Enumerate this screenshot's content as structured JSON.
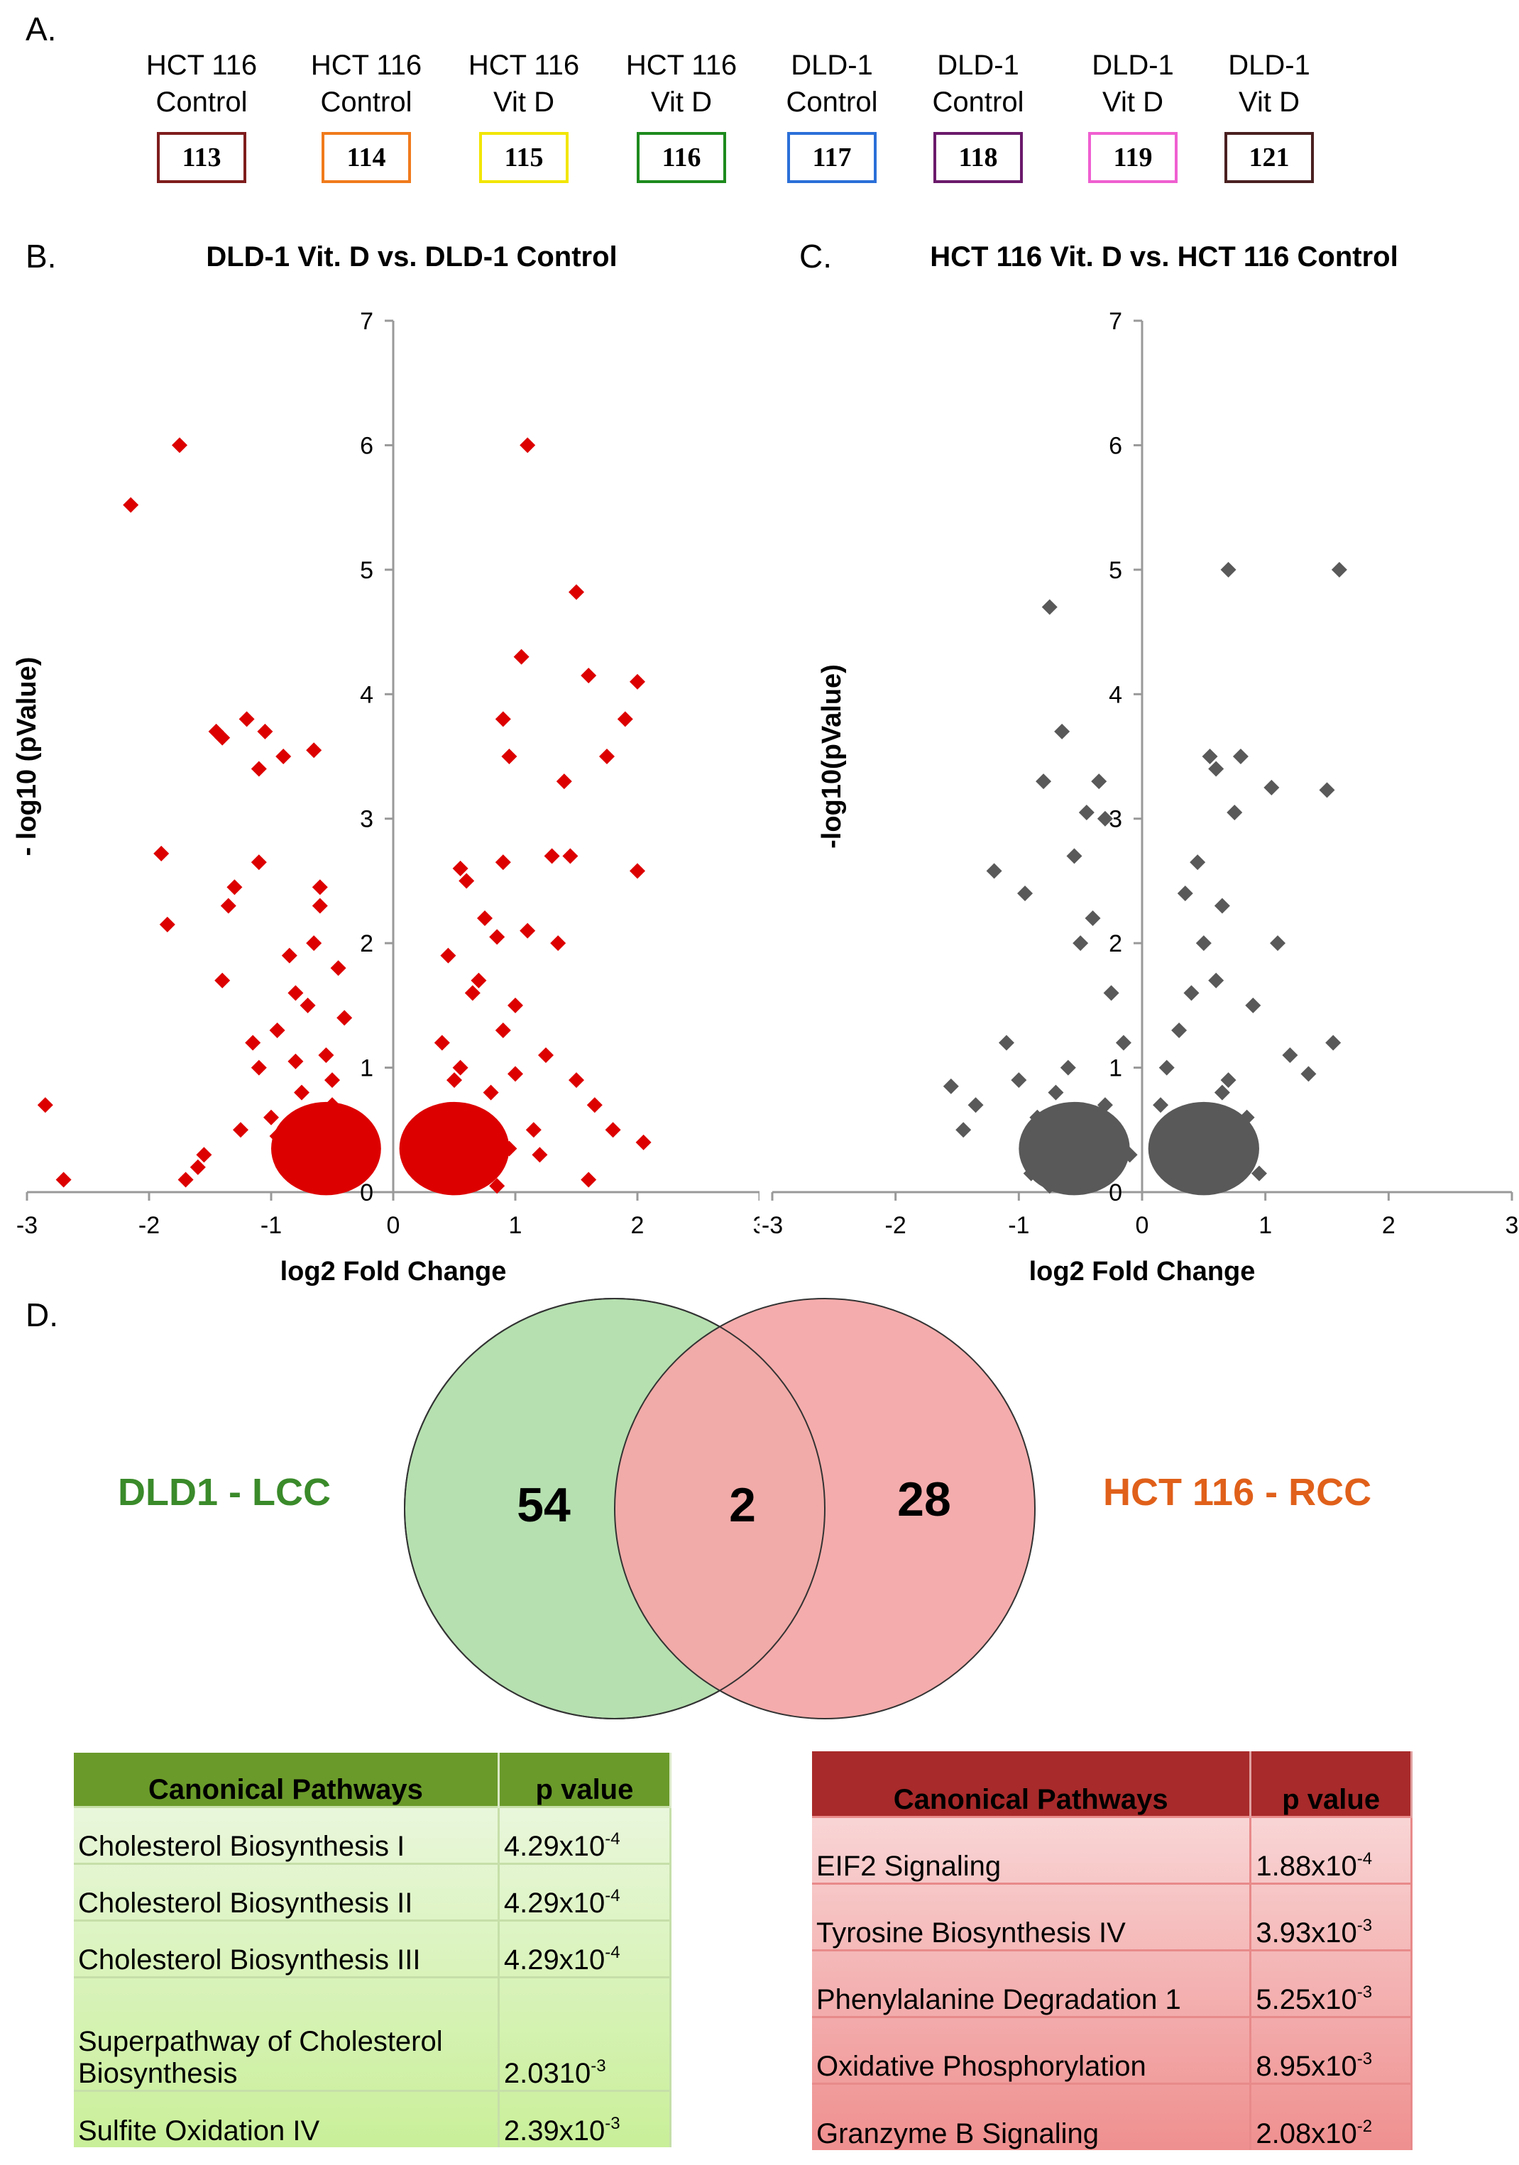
{
  "panel_a": {
    "letter": "A.",
    "samples": [
      {
        "line1": "HCT 116",
        "line2": "Control",
        "tag": "113",
        "color": "#7f1d1d"
      },
      {
        "line1": "HCT 116",
        "line2": "Control",
        "tag": "114",
        "color": "#f07b1c"
      },
      {
        "line1": "HCT 116",
        "line2": "Vit D",
        "tag": "115",
        "color": "#f2e600"
      },
      {
        "line1": "HCT 116",
        "line2": "Vit D",
        "tag": "116",
        "color": "#1d8a1d"
      },
      {
        "line1": "DLD-1",
        "line2": "Control",
        "tag": "117",
        "color": "#2a6fd8"
      },
      {
        "line1": "DLD-1",
        "line2": "Control",
        "tag": "118",
        "color": "#6b1a6b"
      },
      {
        "line1": "DLD-1",
        "line2": "Vit D",
        "tag": "119",
        "color": "#ef5fd0"
      },
      {
        "line1": "DLD-1",
        "line2": "Vit D",
        "tag": "121",
        "color": "#4a2020"
      }
    ]
  },
  "panel_b": {
    "letter": "B."
  },
  "panel_c": {
    "letter": "C."
  },
  "panel_d": {
    "letter": "D.",
    "left_label": "DLD1 - LCC",
    "right_label": "HCT 116 - RCC",
    "left_count": "54",
    "overlap_count": "2",
    "right_count": "28",
    "left_color": "#3a8a2a",
    "right_color": "#e0601a"
  },
  "chart_data": [
    {
      "type": "scatter",
      "title": "DLD-1 Vit. D vs. DLD-1 Control",
      "xlabel": "log2 Fold Change",
      "ylabel": "- log10 (pValue)",
      "xlim": [
        -3,
        3
      ],
      "ylim": [
        0,
        7
      ],
      "xticks": [
        "-3",
        "-2",
        "-1",
        "0",
        "1",
        "2",
        "3"
      ],
      "yticks": [
        "0",
        "1",
        "2",
        "3",
        "4",
        "5",
        "6",
        "7"
      ],
      "color": "#dd0000",
      "x": [
        -1.75,
        -2.15,
        -2.85,
        -2.7,
        -1.9,
        -1.85,
        -1.45,
        -1.4,
        -1.2,
        -1.05,
        -1.1,
        -0.9,
        -0.65,
        -0.6,
        -0.6,
        -1.1,
        -1.3,
        -1.35,
        -1.4,
        -1.55,
        -1.6,
        -1.7,
        -1.15,
        -0.8,
        -0.7,
        -0.65,
        -0.85,
        -0.95,
        -0.55,
        -0.5,
        -0.45,
        -0.4,
        -0.75,
        -1.0,
        -1.25,
        -0.3,
        -0.35,
        -0.9,
        -0.7,
        -0.6,
        -0.5,
        -1.1,
        -0.8,
        -0.95,
        -0.65,
        -0.45,
        1.1,
        1.5,
        1.05,
        1.6,
        1.9,
        2.0,
        1.75,
        1.45,
        0.9,
        0.95,
        0.9,
        1.4,
        1.3,
        0.55,
        0.6,
        0.75,
        0.85,
        1.1,
        1.35,
        1.0,
        0.7,
        0.45,
        0.4,
        0.5,
        0.65,
        0.9,
        1.25,
        1.5,
        1.65,
        1.8,
        2.05,
        1.2,
        0.6,
        0.35,
        0.3,
        0.8,
        1.0,
        0.55,
        0.95,
        1.15,
        0.45,
        0.7,
        0.85,
        2.0,
        1.6
      ],
      "y": [
        6.0,
        5.52,
        0.7,
        0.1,
        2.72,
        2.15,
        3.7,
        3.65,
        3.8,
        3.7,
        3.4,
        3.5,
        3.55,
        2.45,
        2.3,
        2.65,
        2.45,
        2.3,
        1.7,
        0.3,
        0.2,
        0.1,
        1.2,
        1.6,
        1.5,
        2.0,
        1.9,
        1.3,
        1.1,
        0.9,
        1.8,
        1.4,
        0.8,
        0.6,
        0.5,
        0.4,
        0.3,
        0.2,
        0.15,
        0.65,
        0.7,
        1.0,
        1.05,
        0.45,
        0.25,
        0.1,
        6.0,
        4.82,
        4.3,
        4.15,
        3.8,
        4.1,
        3.5,
        2.7,
        3.8,
        3.5,
        2.65,
        3.3,
        2.7,
        2.6,
        2.5,
        2.2,
        2.05,
        2.1,
        2.0,
        1.5,
        1.7,
        1.9,
        1.2,
        0.9,
        1.6,
        1.3,
        1.1,
        0.9,
        0.7,
        0.5,
        0.4,
        0.3,
        0.2,
        0.6,
        0.15,
        0.8,
        0.95,
        1.0,
        0.35,
        0.5,
        0.25,
        0.1,
        0.05,
        2.58,
        0.1
      ]
    },
    {
      "type": "scatter",
      "title": "HCT 116 Vit. D vs. HCT 116 Control",
      "xlabel": "log2 Fold Change",
      "ylabel": "-log10(pValue)",
      "xlim": [
        -3,
        3
      ],
      "ylim": [
        0,
        7
      ],
      "xticks": [
        "-3",
        "-2",
        "-1",
        "0",
        "1",
        "2",
        "3"
      ],
      "yticks": [
        "0",
        "1",
        "2",
        "3",
        "4",
        "5",
        "6",
        "7"
      ],
      "color": "#595959",
      "x": [
        -0.75,
        -0.65,
        -0.8,
        -0.35,
        -0.45,
        -0.3,
        -1.2,
        -0.95,
        -0.55,
        -1.55,
        -1.45,
        -1.35,
        -1.1,
        -1.0,
        -0.85,
        -0.5,
        -0.4,
        -0.25,
        -0.15,
        -0.6,
        -0.7,
        -0.3,
        -0.2,
        -0.1,
        -0.5,
        -0.4,
        -0.9,
        -0.75,
        0.7,
        1.6,
        0.55,
        0.6,
        0.8,
        0.75,
        1.05,
        1.5,
        0.45,
        0.35,
        0.5,
        0.65,
        1.1,
        1.2,
        0.9,
        0.6,
        0.4,
        0.3,
        0.2,
        0.15,
        1.35,
        1.55,
        0.7,
        0.85,
        0.55,
        0.45,
        0.35,
        0.25,
        0.65,
        0.75,
        0.95,
        0.5
      ],
      "y": [
        4.7,
        3.7,
        3.3,
        3.3,
        3.05,
        3.0,
        2.58,
        2.4,
        2.7,
        0.85,
        0.5,
        0.7,
        1.2,
        0.9,
        0.6,
        2.0,
        2.2,
        1.6,
        1.2,
        1.0,
        0.8,
        0.7,
        0.5,
        0.3,
        0.2,
        0.1,
        0.15,
        0.05,
        5.0,
        5.0,
        3.5,
        3.4,
        3.5,
        3.05,
        3.25,
        3.23,
        2.65,
        2.4,
        2.0,
        2.3,
        2.0,
        1.1,
        1.5,
        1.7,
        1.6,
        1.3,
        1.0,
        0.7,
        0.95,
        1.2,
        0.9,
        0.6,
        0.4,
        0.3,
        0.2,
        0.1,
        0.8,
        0.5,
        0.15,
        0.05
      ]
    }
  ],
  "tables": {
    "left": {
      "header_pathway": "Canonical Pathways",
      "header_p": "p value",
      "header_color": "#6a9a2a",
      "rows": [
        {
          "name": "Cholesterol Biosynthesis I",
          "p_base": "4.29x10",
          "p_exp": "-4"
        },
        {
          "name": "Cholesterol Biosynthesis II",
          "p_base": "4.29x10",
          "p_exp": "-4"
        },
        {
          "name": "Cholesterol Biosynthesis III",
          "p_base": "4.29x10",
          "p_exp": "-4"
        },
        {
          "name": "Superpathway of Cholesterol Biosynthesis",
          "p_base": "2.0310",
          "p_exp": "-3"
        },
        {
          "name": "Sulfite Oxidation IV",
          "p_base": "2.39x10",
          "p_exp": "-3"
        }
      ]
    },
    "right": {
      "header_pathway": "Canonical Pathways",
      "header_p": "p value",
      "header_color": "#a82a2a",
      "rows": [
        {
          "name": "EIF2 Signaling",
          "p_base": "1.88x10",
          "p_exp": "-4"
        },
        {
          "name": "Tyrosine Biosynthesis IV",
          "p_base": "3.93x10",
          "p_exp": "-3"
        },
        {
          "name": "Phenylalanine Degradation 1",
          "p_base": "5.25x10",
          "p_exp": "-3"
        },
        {
          "name": "Oxidative Phosphorylation",
          "p_base": "8.95x10",
          "p_exp": "-3"
        },
        {
          "name": "Granzyme B Signaling",
          "p_base": "2.08x10",
          "p_exp": "-2"
        }
      ]
    }
  }
}
